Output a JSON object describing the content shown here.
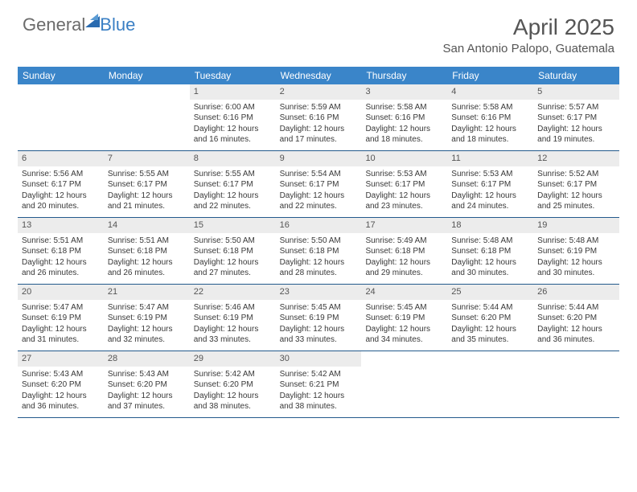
{
  "logo": {
    "text1": "General",
    "text2": "Blue"
  },
  "title": "April 2025",
  "location": "San Antonio Palopo, Guatemala",
  "colors": {
    "header_bg": "#3a85c9",
    "header_fg": "#ffffff",
    "daynum_bg": "#ececec",
    "week_border": "#235a8c",
    "body_bg": "#ffffff",
    "text": "#383838",
    "title": "#555555",
    "logo_gray": "#6b6b6b",
    "logo_blue": "#3a7fc4"
  },
  "typography": {
    "title_fontsize": 28,
    "subtitle_fontsize": 15,
    "dayheader_fontsize": 12,
    "daynum_fontsize": 11,
    "body_fontsize": 10
  },
  "day_headers": [
    "Sunday",
    "Monday",
    "Tuesday",
    "Wednesday",
    "Thursday",
    "Friday",
    "Saturday"
  ],
  "weeks": [
    [
      null,
      null,
      {
        "n": "1",
        "sr": "6:00 AM",
        "ss": "6:16 PM",
        "dl": "12 hours and 16 minutes."
      },
      {
        "n": "2",
        "sr": "5:59 AM",
        "ss": "6:16 PM",
        "dl": "12 hours and 17 minutes."
      },
      {
        "n": "3",
        "sr": "5:58 AM",
        "ss": "6:16 PM",
        "dl": "12 hours and 18 minutes."
      },
      {
        "n": "4",
        "sr": "5:58 AM",
        "ss": "6:16 PM",
        "dl": "12 hours and 18 minutes."
      },
      {
        "n": "5",
        "sr": "5:57 AM",
        "ss": "6:17 PM",
        "dl": "12 hours and 19 minutes."
      }
    ],
    [
      {
        "n": "6",
        "sr": "5:56 AM",
        "ss": "6:17 PM",
        "dl": "12 hours and 20 minutes."
      },
      {
        "n": "7",
        "sr": "5:55 AM",
        "ss": "6:17 PM",
        "dl": "12 hours and 21 minutes."
      },
      {
        "n": "8",
        "sr": "5:55 AM",
        "ss": "6:17 PM",
        "dl": "12 hours and 22 minutes."
      },
      {
        "n": "9",
        "sr": "5:54 AM",
        "ss": "6:17 PM",
        "dl": "12 hours and 22 minutes."
      },
      {
        "n": "10",
        "sr": "5:53 AM",
        "ss": "6:17 PM",
        "dl": "12 hours and 23 minutes."
      },
      {
        "n": "11",
        "sr": "5:53 AM",
        "ss": "6:17 PM",
        "dl": "12 hours and 24 minutes."
      },
      {
        "n": "12",
        "sr": "5:52 AM",
        "ss": "6:17 PM",
        "dl": "12 hours and 25 minutes."
      }
    ],
    [
      {
        "n": "13",
        "sr": "5:51 AM",
        "ss": "6:18 PM",
        "dl": "12 hours and 26 minutes."
      },
      {
        "n": "14",
        "sr": "5:51 AM",
        "ss": "6:18 PM",
        "dl": "12 hours and 26 minutes."
      },
      {
        "n": "15",
        "sr": "5:50 AM",
        "ss": "6:18 PM",
        "dl": "12 hours and 27 minutes."
      },
      {
        "n": "16",
        "sr": "5:50 AM",
        "ss": "6:18 PM",
        "dl": "12 hours and 28 minutes."
      },
      {
        "n": "17",
        "sr": "5:49 AM",
        "ss": "6:18 PM",
        "dl": "12 hours and 29 minutes."
      },
      {
        "n": "18",
        "sr": "5:48 AM",
        "ss": "6:18 PM",
        "dl": "12 hours and 30 minutes."
      },
      {
        "n": "19",
        "sr": "5:48 AM",
        "ss": "6:19 PM",
        "dl": "12 hours and 30 minutes."
      }
    ],
    [
      {
        "n": "20",
        "sr": "5:47 AM",
        "ss": "6:19 PM",
        "dl": "12 hours and 31 minutes."
      },
      {
        "n": "21",
        "sr": "5:47 AM",
        "ss": "6:19 PM",
        "dl": "12 hours and 32 minutes."
      },
      {
        "n": "22",
        "sr": "5:46 AM",
        "ss": "6:19 PM",
        "dl": "12 hours and 33 minutes."
      },
      {
        "n": "23",
        "sr": "5:45 AM",
        "ss": "6:19 PM",
        "dl": "12 hours and 33 minutes."
      },
      {
        "n": "24",
        "sr": "5:45 AM",
        "ss": "6:19 PM",
        "dl": "12 hours and 34 minutes."
      },
      {
        "n": "25",
        "sr": "5:44 AM",
        "ss": "6:20 PM",
        "dl": "12 hours and 35 minutes."
      },
      {
        "n": "26",
        "sr": "5:44 AM",
        "ss": "6:20 PM",
        "dl": "12 hours and 36 minutes."
      }
    ],
    [
      {
        "n": "27",
        "sr": "5:43 AM",
        "ss": "6:20 PM",
        "dl": "12 hours and 36 minutes."
      },
      {
        "n": "28",
        "sr": "5:43 AM",
        "ss": "6:20 PM",
        "dl": "12 hours and 37 minutes."
      },
      {
        "n": "29",
        "sr": "5:42 AM",
        "ss": "6:20 PM",
        "dl": "12 hours and 38 minutes."
      },
      {
        "n": "30",
        "sr": "5:42 AM",
        "ss": "6:21 PM",
        "dl": "12 hours and 38 minutes."
      },
      null,
      null,
      null
    ]
  ],
  "labels": {
    "sunrise_prefix": "Sunrise: ",
    "sunset_prefix": "Sunset: ",
    "daylight_prefix": "Daylight: "
  }
}
